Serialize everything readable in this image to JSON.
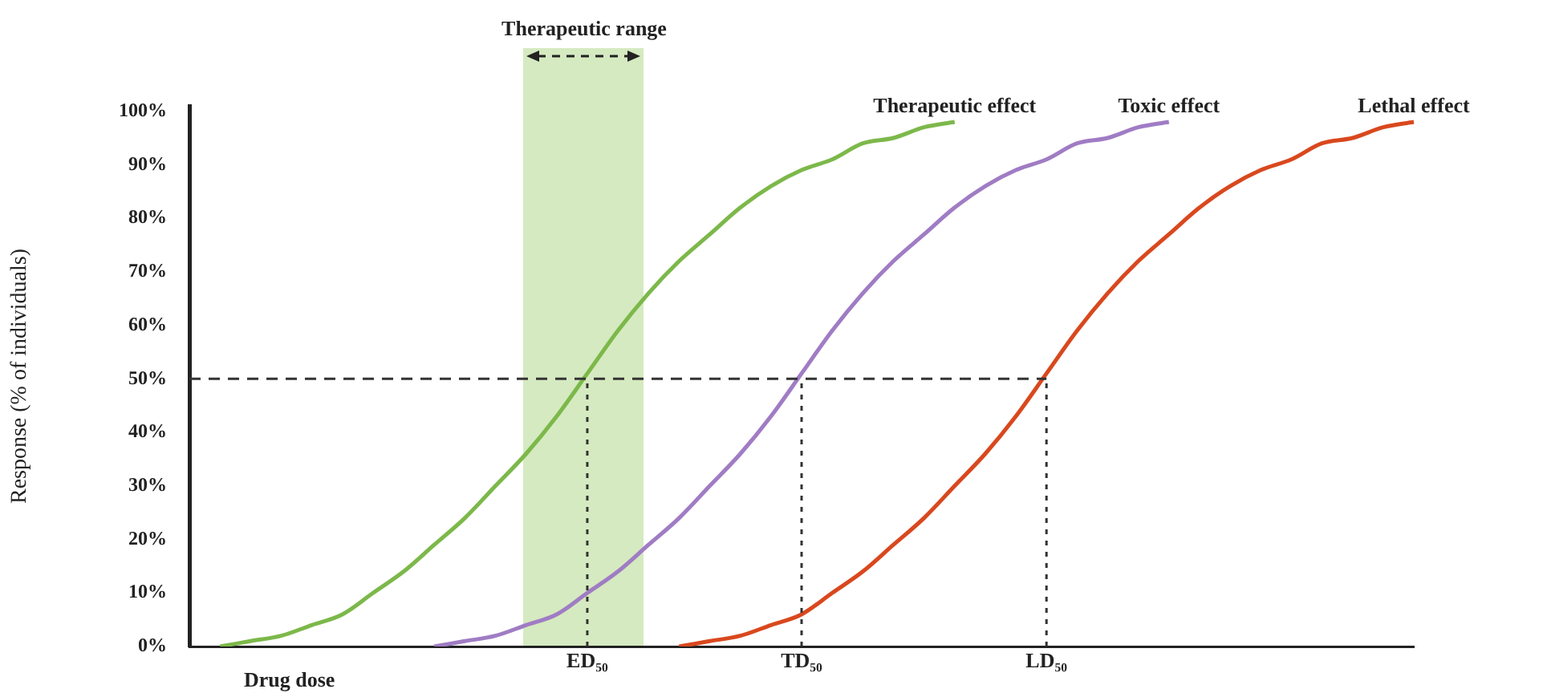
{
  "chart_data": {
    "type": "line",
    "xlabel": "Drug dose",
    "ylabel": "Response (% of individuals)",
    "categories": [
      null,
      null,
      null,
      null,
      null,
      null,
      null,
      null,
      null,
      null,
      null,
      null,
      null,
      "ED₅₀",
      null,
      null,
      null,
      null,
      null,
      null,
      "TD₅₀",
      null,
      null,
      null,
      null,
      null,
      null,
      null,
      "LD₅₀",
      null,
      null,
      null,
      null,
      null,
      null,
      null,
      null,
      null,
      null,
      null,
      null
    ],
    "ylim": [
      0,
      101
    ],
    "yticks": [
      {
        "value": 0,
        "label": "0%"
      },
      {
        "value": 10,
        "label": "10%"
      },
      {
        "value": 20,
        "label": "20%"
      },
      {
        "value": 30,
        "label": "30%"
      },
      {
        "value": 40,
        "label": "40%"
      },
      {
        "value": 50,
        "label": "50%"
      },
      {
        "value": 60,
        "label": "60%"
      },
      {
        "value": 70,
        "label": "70%"
      },
      {
        "value": 80,
        "label": "80%"
      },
      {
        "value": 90,
        "label": "90%"
      },
      {
        "value": 100,
        "label": "100%"
      }
    ],
    "legend": false,
    "marker": "none",
    "series": [
      {
        "name": "Therapeutic effect",
        "color": "#7cb84a",
        "values": [
          null,
          0,
          1,
          2,
          4,
          6,
          10,
          14,
          19,
          24,
          30,
          36,
          43,
          51,
          59,
          66,
          72,
          77,
          82,
          86,
          89,
          91,
          94,
          95,
          97,
          98,
          null,
          null,
          null,
          null,
          null,
          null,
          null,
          null,
          null,
          null,
          null,
          null,
          null,
          null,
          null
        ]
      },
      {
        "name": "Toxic effect",
        "color": "#a07cc4",
        "values": [
          null,
          null,
          null,
          null,
          null,
          null,
          null,
          null,
          0,
          1,
          2,
          4,
          6,
          10,
          14,
          19,
          24,
          30,
          36,
          43,
          51,
          59,
          66,
          72,
          77,
          82,
          86,
          89,
          91,
          94,
          95,
          97,
          98,
          null,
          null,
          null,
          null,
          null,
          null,
          null,
          null
        ]
      },
      {
        "name": "Lethal effect",
        "color": "#d9481e",
        "values": [
          null,
          null,
          null,
          null,
          null,
          null,
          null,
          null,
          null,
          null,
          null,
          null,
          null,
          null,
          null,
          null,
          0,
          1,
          2,
          4,
          6,
          10,
          14,
          19,
          24,
          30,
          36,
          43,
          51,
          59,
          66,
          72,
          77,
          82,
          86,
          89,
          91,
          94,
          95,
          97,
          98
        ]
      }
    ],
    "ref_lines": [
      {
        "axis": "y",
        "value": 50,
        "color": "#333333",
        "line_style": "dashed"
      },
      {
        "axis": "x",
        "value": "ED₅₀",
        "color": "#333333",
        "line_style": "dotted"
      },
      {
        "axis": "x",
        "value": "TD₅₀",
        "color": "#333333",
        "line_style": "dotted"
      },
      {
        "axis": "x",
        "value": "LD₅₀",
        "color": "#333333",
        "line_style": "dotted"
      }
    ],
    "annotations": [
      "Therapeutic range"
    ]
  }
}
